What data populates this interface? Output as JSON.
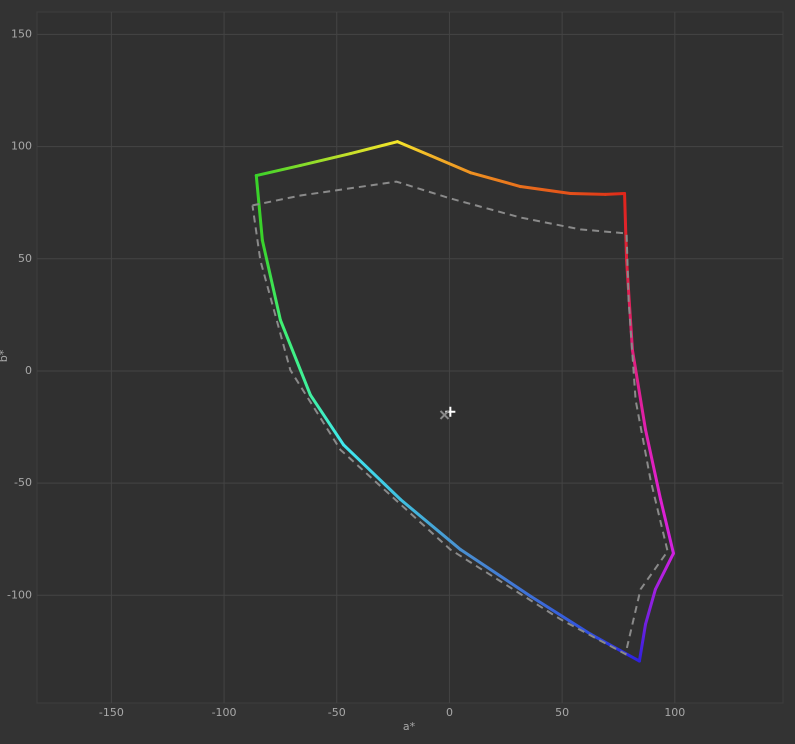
{
  "chart_data": {
    "type": "line",
    "x_label": "a*",
    "y_label": "b*",
    "xlim": [
      -183,
      148
    ],
    "ylim": [
      -148,
      160
    ],
    "xticks": [
      -150,
      -100,
      -50,
      0,
      50,
      100
    ],
    "yticks": [
      -100,
      -50,
      0,
      50,
      100,
      150
    ],
    "grid": true,
    "series": [
      {
        "x": [
          -85.7,
          -66.1,
          -43.9,
          -23.1,
          -8.4,
          9.3,
          31.5,
          53.7,
          69.2,
          77.7,
          78.6,
          81.2,
          87,
          93.7,
          99.4,
          91.4,
          87,
          84.3,
          62.6,
          36,
          4.9,
          -21.7,
          -47,
          -61.7,
          -75,
          -83,
          -85.7
        ],
        "values": [
          87.1,
          91.6,
          96.9,
          102.2,
          96,
          88.4,
          82.2,
          79.1,
          78.7,
          79.1,
          49.3,
          9.3,
          -26.2,
          -57.3,
          -81.3,
          -97.3,
          -112.9,
          -129.3,
          -117.3,
          -100.4,
          -79.6,
          -57.3,
          -32.9,
          -10.7,
          22.7,
          58.2,
          87.1
        ],
        "colors": [
          "#3ad22a",
          "#80dc2a",
          "#c8e02a",
          "#f5e62a",
          "#f2b428",
          "#ee9222",
          "#e8701c",
          "#e4501a",
          "#e03a18",
          "#e0261a",
          "#e0203c",
          "#e0207a",
          "#e020b0",
          "#e020d0",
          "#d020e0",
          "#a020e0",
          "#7020e0",
          "#3020e0",
          "#3050e0",
          "#3e70d8",
          "#4a90d0",
          "#40c0e0",
          "#40e8f0",
          "#40f0a0",
          "#40f070",
          "#3ad22a",
          "#3ad22a"
        ]
      },
      {
        "x": [
          -87.4,
          -66.1,
          -23.5,
          0.4,
          31.5,
          58.1,
          78.6,
          79.5,
          82.6,
          89.2,
          96.8,
          84.8,
          78.1,
          49.3,
          0.4,
          -48.4,
          -70.6,
          -83.9,
          -87.4
        ],
        "values": [
          73.8,
          78.2,
          84.4,
          76.9,
          68.4,
          63.1,
          61.3,
          31.6,
          -12.9,
          -48.4,
          -80.4,
          -97.3,
          -126.2,
          -110.7,
          -79.6,
          -35.1,
          0.4,
          49.3,
          73.8
        ],
        "color": "#8a8a8a",
        "dashed": true
      }
    ],
    "markers": [
      {
        "x": 0.4,
        "y": -18.2,
        "shape": "plus",
        "color": "#ffffff"
      },
      {
        "x": -2.2,
        "y": -19.6,
        "shape": "cross",
        "color": "#8a8a8a"
      }
    ]
  }
}
